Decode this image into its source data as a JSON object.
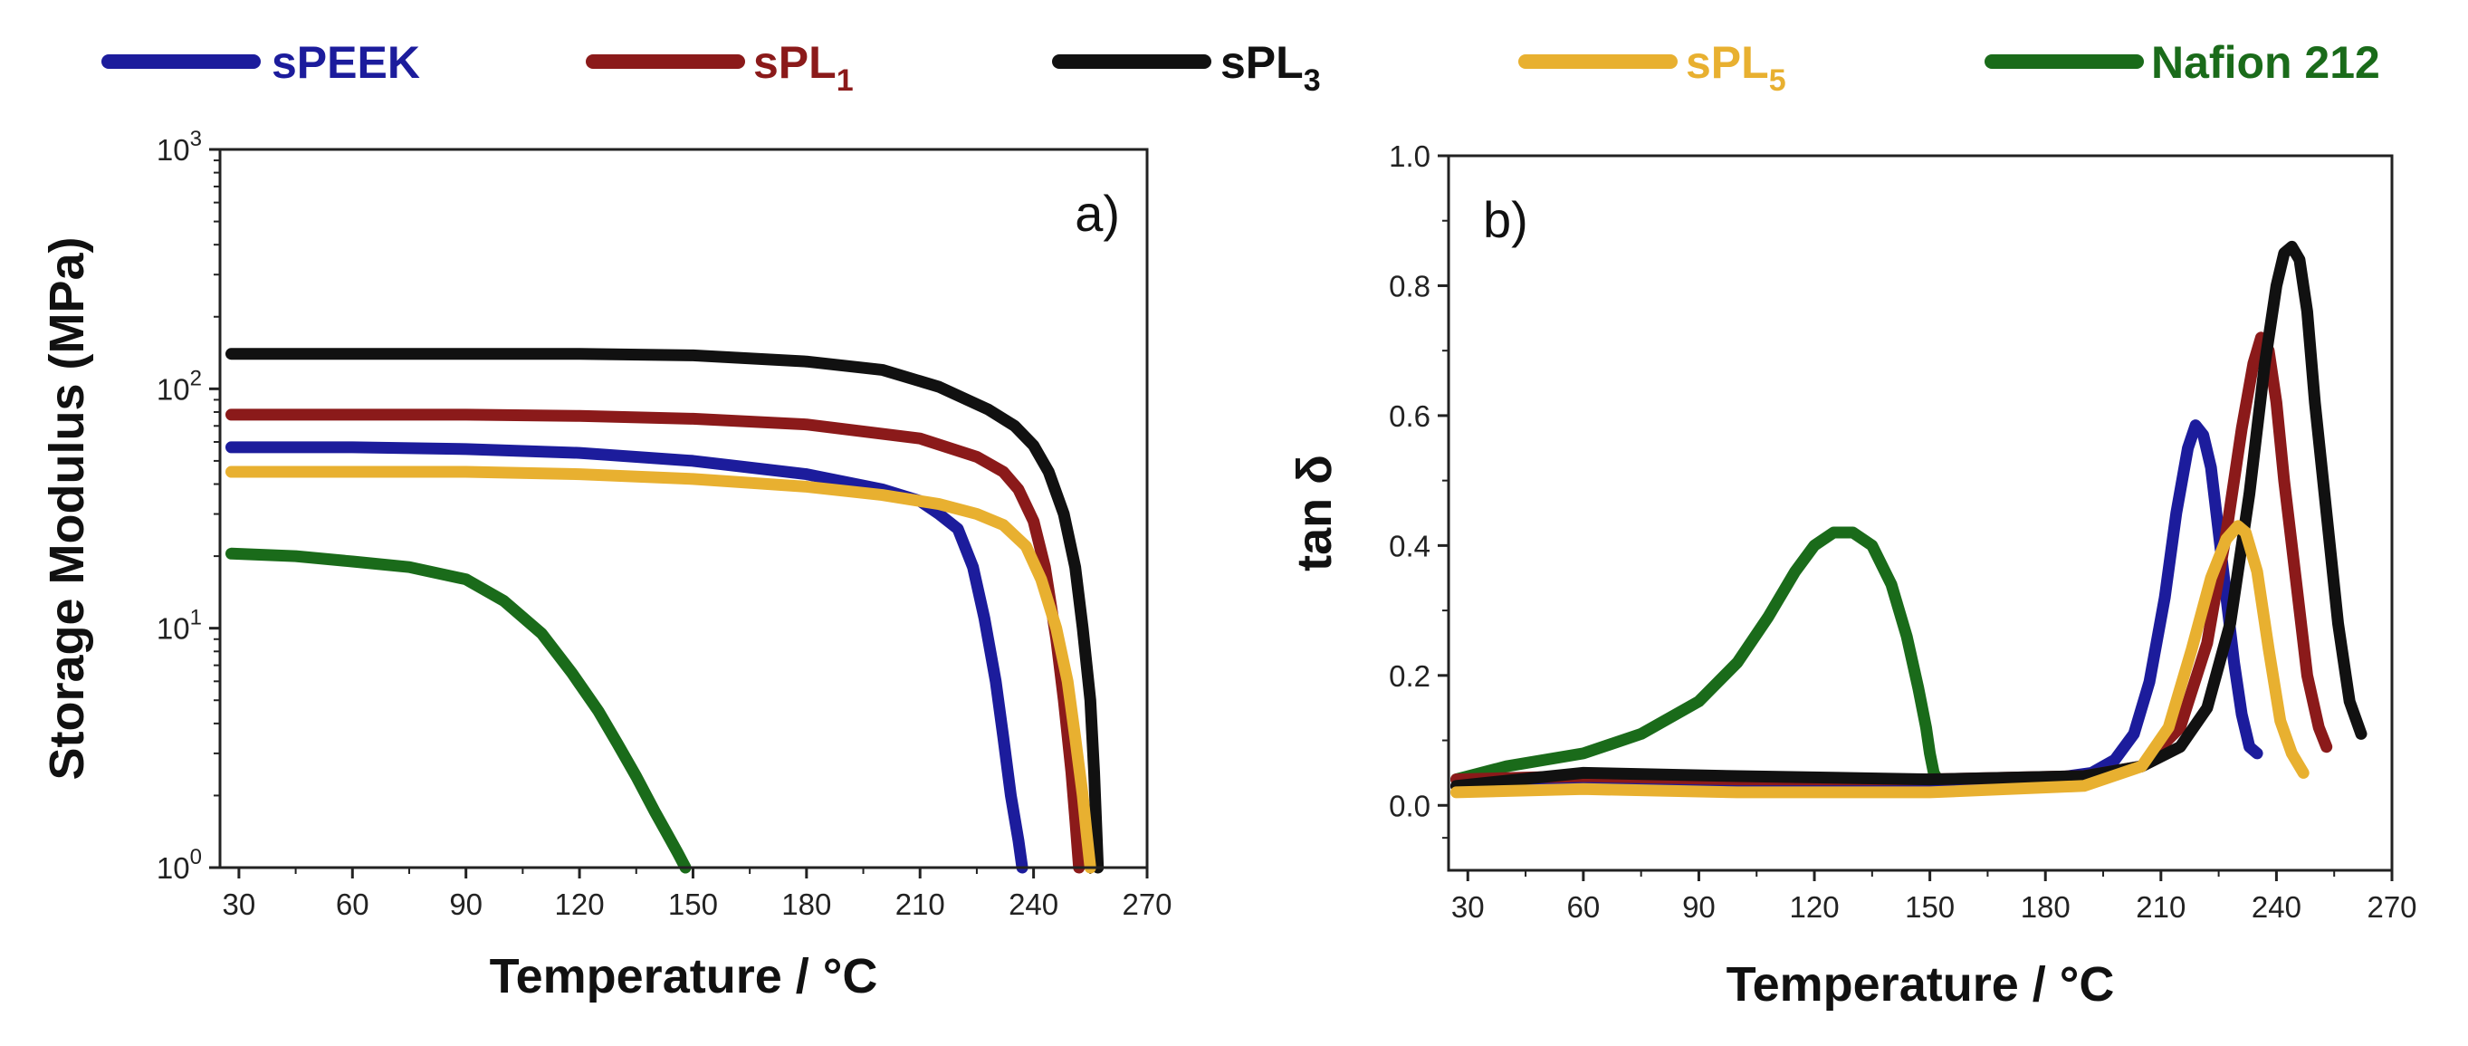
{
  "figure": {
    "legend": [
      {
        "name": "sPEEK",
        "base": "sPEEK",
        "sub": "",
        "color": "#1c1c9c"
      },
      {
        "name": "sPL1",
        "base": "sPL",
        "sub": "1",
        "color": "#8b1a1a"
      },
      {
        "name": "sPL3",
        "base": "sPL",
        "sub": "3",
        "color": "#111111"
      },
      {
        "name": "sPL5",
        "base": "sPL",
        "sub": "5",
        "color": "#e8b030"
      },
      {
        "name": "Nafion 212",
        "base": "Nafion 212",
        "sub": "",
        "color": "#1a6b1a"
      }
    ]
  },
  "chart_data": [
    {
      "type": "line",
      "panel_label": "a)",
      "xlabel": "Temperature / °C",
      "ylabel": "Storage Modulus (MPa)",
      "yscale": "log",
      "xlim": [
        25,
        270
      ],
      "ylim": [
        1,
        1000
      ],
      "xticks": [
        30,
        60,
        90,
        120,
        150,
        180,
        210,
        240,
        270
      ],
      "yticks": [
        {
          "value": 1,
          "base": "10",
          "exp": "0"
        },
        {
          "value": 10,
          "base": "10",
          "exp": "1"
        },
        {
          "value": 100,
          "base": "10",
          "exp": "2"
        },
        {
          "value": 1000,
          "base": "10",
          "exp": "3"
        }
      ],
      "series": [
        {
          "name": "sPEEK",
          "color": "#1c1c9c",
          "x": [
            28,
            60,
            90,
            120,
            150,
            180,
            200,
            210,
            215,
            220,
            224,
            227,
            230,
            232,
            234,
            236,
            237
          ],
          "y": [
            57,
            57,
            56,
            54,
            50,
            44,
            38,
            34,
            30,
            26,
            18,
            11,
            6,
            3.5,
            2.0,
            1.3,
            1.0
          ]
        },
        {
          "name": "sPL1",
          "color": "#8b1a1a",
          "x": [
            28,
            60,
            90,
            120,
            150,
            180,
            210,
            225,
            232,
            236,
            240,
            243,
            246,
            248,
            250,
            251,
            252
          ],
          "y": [
            78,
            78,
            78,
            77,
            75,
            71,
            62,
            52,
            45,
            38,
            28,
            18,
            9,
            5,
            2.5,
            1.6,
            1.0
          ]
        },
        {
          "name": "sPL3",
          "color": "#111111",
          "x": [
            28,
            60,
            90,
            120,
            150,
            180,
            200,
            215,
            228,
            235,
            240,
            244,
            248,
            251,
            253,
            255,
            256,
            257
          ],
          "y": [
            140,
            140,
            140,
            140,
            138,
            130,
            120,
            102,
            82,
            70,
            58,
            45,
            30,
            18,
            10,
            5,
            2.5,
            1.0
          ]
        },
        {
          "name": "sPL5",
          "color": "#e8b030",
          "x": [
            28,
            60,
            90,
            120,
            150,
            180,
            200,
            215,
            225,
            232,
            238,
            242,
            246,
            249,
            251,
            253,
            254,
            255
          ],
          "y": [
            45,
            45,
            45,
            44,
            42,
            39,
            36,
            33,
            30,
            27,
            22,
            16,
            10,
            6,
            3.5,
            2.0,
            1.4,
            1.0
          ]
        },
        {
          "name": "Nafion 212",
          "color": "#1a6b1a",
          "x": [
            28,
            45,
            60,
            75,
            90,
            100,
            110,
            118,
            125,
            130,
            135,
            140,
            143,
            146,
            148
          ],
          "y": [
            20.5,
            20,
            19,
            18,
            16,
            13,
            9.5,
            6.5,
            4.5,
            3.3,
            2.4,
            1.7,
            1.4,
            1.15,
            1.0
          ]
        }
      ]
    },
    {
      "type": "line",
      "panel_label": "b)",
      "xlabel": "Temperature / °C",
      "ylabel": "tan δ",
      "xlim": [
        25,
        270
      ],
      "ylim": [
        -0.1,
        1.0
      ],
      "xticks": [
        30,
        60,
        90,
        120,
        150,
        180,
        210,
        240,
        270
      ],
      "yticks": [
        {
          "value": 0.0,
          "label": "0.0"
        },
        {
          "value": 0.2,
          "label": "0.2"
        },
        {
          "value": 0.4,
          "label": "0.4"
        },
        {
          "value": 0.6,
          "label": "0.6"
        },
        {
          "value": 0.8,
          "label": "0.8"
        },
        {
          "value": 1.0,
          "label": "1.0"
        }
      ],
      "series": [
        {
          "name": "Nafion 212",
          "color": "#1a6b1a",
          "x": [
            27,
            40,
            60,
            75,
            90,
            100,
            108,
            115,
            120,
            125,
            130,
            135,
            140,
            144,
            147,
            149,
            150,
            151,
            152
          ],
          "y": [
            0.04,
            0.06,
            0.08,
            0.11,
            0.16,
            0.22,
            0.29,
            0.36,
            0.4,
            0.42,
            0.42,
            0.4,
            0.34,
            0.26,
            0.18,
            0.12,
            0.08,
            0.05,
            0.04
          ]
        },
        {
          "name": "sPEEK",
          "color": "#1c1c9c",
          "x": [
            27,
            60,
            100,
            150,
            180,
            192,
            198,
            203,
            207,
            211,
            214,
            217,
            219,
            221,
            223,
            225,
            227,
            229,
            231,
            233,
            235
          ],
          "y": [
            0.03,
            0.035,
            0.035,
            0.035,
            0.04,
            0.05,
            0.07,
            0.11,
            0.19,
            0.32,
            0.45,
            0.55,
            0.585,
            0.57,
            0.52,
            0.42,
            0.32,
            0.22,
            0.14,
            0.09,
            0.08
          ]
        },
        {
          "name": "sPL1",
          "color": "#8b1a1a",
          "x": [
            27,
            60,
            100,
            150,
            190,
            205,
            215,
            222,
            227,
            231,
            234,
            236,
            238,
            240,
            242,
            245,
            248,
            251,
            253
          ],
          "y": [
            0.04,
            0.045,
            0.04,
            0.04,
            0.045,
            0.06,
            0.12,
            0.25,
            0.42,
            0.58,
            0.68,
            0.72,
            0.7,
            0.62,
            0.5,
            0.35,
            0.2,
            0.12,
            0.09
          ]
        },
        {
          "name": "sPL3",
          "color": "#111111",
          "x": [
            27,
            60,
            100,
            150,
            190,
            205,
            215,
            222,
            228,
            233,
            237,
            240,
            242,
            244,
            246,
            248,
            250,
            253,
            256,
            259,
            262
          ],
          "y": [
            0.03,
            0.05,
            0.045,
            0.04,
            0.045,
            0.06,
            0.09,
            0.15,
            0.28,
            0.48,
            0.68,
            0.8,
            0.85,
            0.86,
            0.84,
            0.76,
            0.62,
            0.45,
            0.28,
            0.16,
            0.11
          ]
        },
        {
          "name": "sPL5",
          "color": "#e8b030",
          "x": [
            27,
            60,
            100,
            150,
            190,
            205,
            212,
            218,
            223,
            227,
            230,
            232,
            235,
            238,
            241,
            244,
            247
          ],
          "y": [
            0.02,
            0.025,
            0.02,
            0.02,
            0.03,
            0.06,
            0.12,
            0.24,
            0.35,
            0.41,
            0.43,
            0.42,
            0.36,
            0.24,
            0.13,
            0.08,
            0.05
          ]
        }
      ]
    }
  ]
}
